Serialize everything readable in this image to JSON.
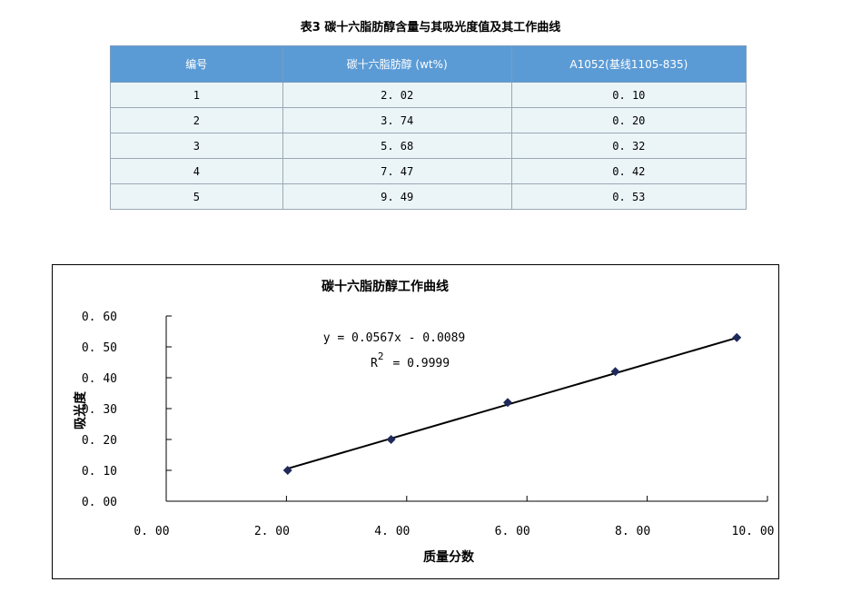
{
  "table": {
    "caption": "表3 碳十六脂肪醇含量与其吸光度值及其工作曲线",
    "headers": [
      "编号",
      "碳十六脂肪醇 (wt%)",
      "A1052(基线1105-835)"
    ],
    "rows": [
      [
        "1",
        "2. 02",
        "0. 10"
      ],
      [
        "2",
        "3. 74",
        "0. 20"
      ],
      [
        "3",
        "5. 68",
        "0. 32"
      ],
      [
        "4",
        "7. 47",
        "0. 42"
      ],
      [
        "5",
        "9. 49",
        "0. 53"
      ]
    ]
  },
  "chart_data": {
    "type": "scatter",
    "title": "碳十六脂肪醇工作曲线",
    "xlabel": "质量分数",
    "ylabel": "吸光度",
    "xlim": [
      0,
      10
    ],
    "ylim": [
      0,
      0.6
    ],
    "x_ticks": [
      "0. 00",
      "2. 00",
      "4. 00",
      "6. 00",
      "8. 00",
      "10. 00"
    ],
    "y_ticks": [
      "0. 00",
      "0. 10",
      "0. 20",
      "0. 30",
      "0. 40",
      "0. 50",
      "0. 60"
    ],
    "x": [
      2.02,
      3.74,
      5.68,
      7.47,
      9.49
    ],
    "y": [
      0.1,
      0.2,
      0.32,
      0.42,
      0.53
    ],
    "trendline": {
      "slope": 0.0567,
      "intercept": -0.0089
    },
    "equation": "y = 0.0567x - 0.0089",
    "r2_label": "R",
    "r2_sup": "2",
    "r2_value": "= 0.9999",
    "marker_color": "#1f2a5a",
    "line_color": "#000000"
  }
}
